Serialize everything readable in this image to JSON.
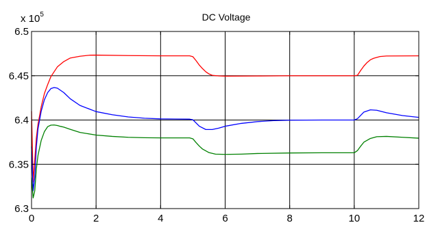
{
  "chart_data": {
    "type": "line",
    "title": "DC Voltage",
    "xlabel": "",
    "ylabel": "",
    "y_multiplier": {
      "base": "x 10",
      "exponent": "5"
    },
    "xlim": [
      0,
      12
    ],
    "ylim": [
      6.3,
      6.5
    ],
    "x_ticks": [
      0,
      2,
      4,
      6,
      8,
      10,
      12
    ],
    "y_ticks": [
      6.3,
      6.35,
      6.4,
      6.45,
      6.5
    ],
    "x_tick_labels": [
      "0",
      "2",
      "4",
      "6",
      "8",
      "10",
      "12"
    ],
    "y_tick_labels": [
      "6.3",
      "6.35",
      "6.4",
      "6.45",
      "6.5"
    ],
    "grid": true,
    "legend": "none",
    "series": [
      {
        "color": "#ff0000",
        "x": [
          0,
          0.05,
          0.1,
          0.15,
          0.2,
          0.3,
          0.4,
          0.5,
          0.6,
          0.8,
          1.0,
          1.2,
          1.5,
          1.8,
          2.0,
          3.0,
          4.0,
          4.9,
          5.0,
          5.1,
          5.2,
          5.3,
          5.4,
          5.5,
          5.6,
          5.8,
          6.0,
          7.0,
          8.0,
          9.0,
          10.0,
          10.1,
          10.2,
          10.3,
          10.4,
          10.5,
          10.6,
          10.8,
          11.0,
          12.0
        ],
        "values": [
          6.41,
          6.33,
          6.355,
          6.38,
          6.395,
          6.415,
          6.43,
          6.44,
          6.449,
          6.46,
          6.466,
          6.47,
          6.472,
          6.4732,
          6.4733,
          6.4728,
          6.4725,
          6.4725,
          6.4715,
          6.467,
          6.462,
          6.458,
          6.4545,
          6.452,
          6.4505,
          6.4498,
          6.4495,
          6.4497,
          6.45,
          6.45,
          6.45,
          6.4505,
          6.456,
          6.461,
          6.465,
          6.468,
          6.4697,
          6.4717,
          6.4723,
          6.4725
        ]
      },
      {
        "color": "#0000ff",
        "x": [
          0,
          0.05,
          0.1,
          0.15,
          0.2,
          0.3,
          0.4,
          0.5,
          0.6,
          0.7,
          0.8,
          1.0,
          1.2,
          1.5,
          2.0,
          2.5,
          3.0,
          3.5,
          4.0,
          4.9,
          5.0,
          5.2,
          5.4,
          5.6,
          5.8,
          6.0,
          6.5,
          7.0,
          7.5,
          8.0,
          9.0,
          10.0,
          10.1,
          10.3,
          10.5,
          10.7,
          11.0,
          11.5,
          12.0
        ],
        "values": [
          6.37,
          6.32,
          6.335,
          6.37,
          6.39,
          6.41,
          6.423,
          6.431,
          6.4355,
          6.4367,
          6.436,
          6.431,
          6.424,
          6.4165,
          6.4095,
          6.406,
          6.4035,
          6.402,
          6.4013,
          6.401,
          6.4003,
          6.393,
          6.3893,
          6.3893,
          6.3908,
          6.393,
          6.3962,
          6.3982,
          6.3993,
          6.3998,
          6.4,
          6.4,
          6.4015,
          6.409,
          6.4115,
          6.411,
          6.4082,
          6.405,
          6.403
        ]
      },
      {
        "color": "#008000",
        "x": [
          0,
          0.05,
          0.1,
          0.15,
          0.2,
          0.3,
          0.4,
          0.5,
          0.6,
          0.7,
          0.8,
          0.9,
          1.0,
          1.2,
          1.5,
          2.0,
          2.5,
          3.0,
          3.5,
          4.0,
          4.9,
          5.0,
          5.1,
          5.2,
          5.3,
          5.5,
          5.7,
          6.0,
          6.5,
          7.0,
          8.0,
          9.0,
          10.0,
          10.1,
          10.2,
          10.3,
          10.5,
          10.7,
          11.0,
          11.5,
          12.0
        ],
        "values": [
          6.335,
          6.312,
          6.32,
          6.345,
          6.36,
          6.377,
          6.387,
          6.3925,
          6.3942,
          6.3944,
          6.3938,
          6.3928,
          6.392,
          6.3895,
          6.386,
          6.383,
          6.3815,
          6.3805,
          6.38,
          6.3798,
          6.3798,
          6.3788,
          6.3745,
          6.3705,
          6.3672,
          6.3632,
          6.3615,
          6.3612,
          6.3615,
          6.3622,
          6.3628,
          6.363,
          6.363,
          6.3655,
          6.3705,
          6.375,
          6.3792,
          6.3812,
          6.3815,
          6.3805,
          6.3795
        ]
      }
    ]
  }
}
